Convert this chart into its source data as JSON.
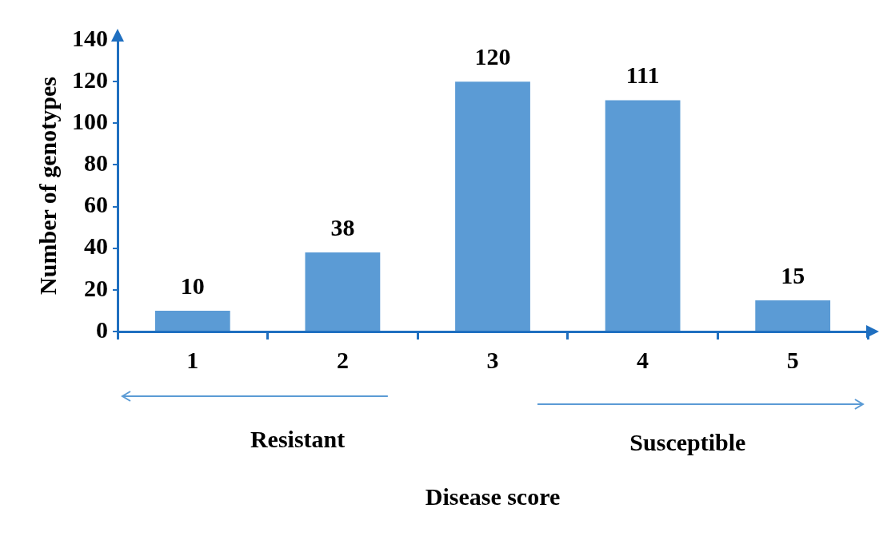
{
  "chart_data": {
    "type": "bar",
    "xlabel": "Disease score",
    "ylabel": "Number of genotypes",
    "categories": [
      "1",
      "2",
      "3",
      "4",
      "5"
    ],
    "values": [
      10,
      38,
      120,
      111,
      15
    ],
    "color": "#5b9bd5",
    "ylim": [
      0,
      140
    ],
    "yticks": [
      0,
      20,
      40,
      60,
      80,
      100,
      120,
      140
    ],
    "grid": false,
    "legend": false,
    "data_labels": true,
    "annotations": [
      "Resistant",
      "Susceptible"
    ]
  }
}
